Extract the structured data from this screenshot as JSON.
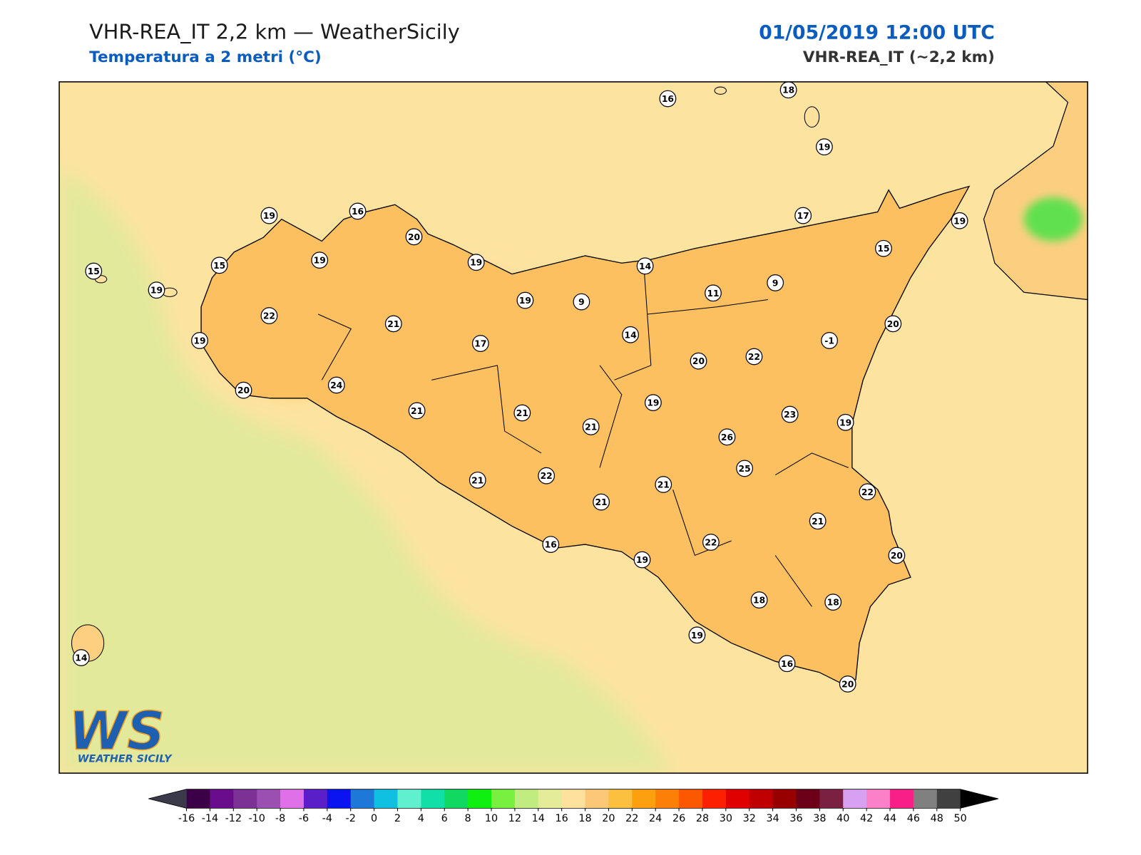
{
  "header": {
    "title": "VHR-REA_IT 2,2 km — WeatherSicily",
    "subtitle": "Temperatura a 2 metri (°C)",
    "date": "01/05/2019 12:00 UTC",
    "model": "VHR-REA_IT (~2,2 km)"
  },
  "stations": [
    16,
    18,
    19,
    19,
    16,
    20,
    19,
    15,
    15,
    19,
    19,
    14,
    17,
    19,
    15,
    9,
    11,
    9,
    19,
    22,
    21,
    14,
    20,
    -1,
    19,
    17,
    20,
    22,
    24,
    20,
    21,
    21,
    19,
    21,
    23,
    19,
    26,
    25,
    21,
    22,
    21,
    21,
    22,
    21,
    16,
    22,
    20,
    19,
    18,
    18,
    19,
    16,
    20,
    14
  ],
  "logo": {
    "mark": "WS",
    "text": "WEATHER SICILY"
  },
  "colorbar": {
    "ticks": [
      -16,
      -14,
      -12,
      -10,
      -8,
      -6,
      -4,
      -2,
      0,
      2,
      4,
      6,
      8,
      10,
      12,
      14,
      16,
      18,
      20,
      22,
      24,
      26,
      28,
      30,
      32,
      34,
      36,
      38,
      40,
      42,
      44,
      46,
      48,
      50
    ],
    "colors": [
      "#3b0048",
      "#6a0d8c",
      "#7b3294",
      "#9b4fb0",
      "#e070e8",
      "#5a1fc8",
      "#0a14f0",
      "#1e78d8",
      "#10c0e0",
      "#60f0d0",
      "#10e0a8",
      "#10d860",
      "#10f010",
      "#78f040",
      "#c0ec80",
      "#e4ec9a",
      "#fde19c",
      "#fcc878",
      "#fcc040",
      "#fca010",
      "#fc8008",
      "#fc5800",
      "#fc2000",
      "#e00000",
      "#c00000",
      "#980000",
      "#6c0018",
      "#7a2040",
      "#d8a0f0",
      "#fc80c8",
      "#f82088",
      "#808080",
      "#404040"
    ],
    "under": "#3a3a4a",
    "over": "#000000"
  }
}
